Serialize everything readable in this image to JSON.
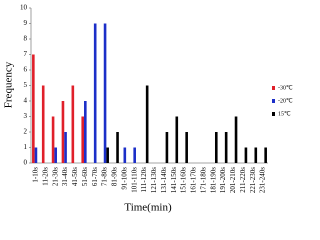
{
  "chart_data": {
    "type": "bar",
    "x_label": "Time(min)",
    "y_label": "Frequency",
    "categories": [
      "1-10s",
      "11-20s",
      "21-30s",
      "31-40s",
      "41-50s",
      "51-60s",
      "61-70s",
      "71-80s",
      "81-90s",
      "91-100s",
      "101-110s",
      "111-120s",
      "121-130s",
      "131-140s",
      "141-150s",
      "151-160s",
      "161-170s",
      "171-180s",
      "181-190s",
      "191-200s",
      "201-210s",
      "211-220s",
      "221-230s",
      "231-240s"
    ],
    "series": [
      {
        "name": "-30℃",
        "color": "#e0202a",
        "values": [
          7,
          5,
          3,
          4,
          5,
          3,
          0,
          0,
          0,
          0,
          0,
          0,
          0,
          0,
          0,
          0,
          0,
          0,
          0,
          0,
          0,
          0,
          0,
          0
        ]
      },
      {
        "name": "-20℃",
        "color": "#1c2fc8",
        "values": [
          1,
          0,
          1,
          2,
          0,
          4,
          9,
          9,
          0,
          1,
          1,
          0,
          0,
          0,
          0,
          0,
          0,
          0,
          0,
          0,
          0,
          0,
          0,
          0
        ]
      },
      {
        "name": "15℃",
        "color": "#000000",
        "values": [
          0,
          0,
          0,
          0,
          0,
          0,
          0,
          1,
          2,
          0,
          0,
          5,
          0,
          2,
          3,
          2,
          0,
          0,
          2,
          2,
          3,
          1,
          1,
          1
        ]
      }
    ],
    "ylim": [
      0,
      10
    ],
    "yticks": [
      0,
      1,
      2,
      3,
      4,
      5,
      6,
      7,
      8,
      9,
      10
    ],
    "legend": "right"
  }
}
